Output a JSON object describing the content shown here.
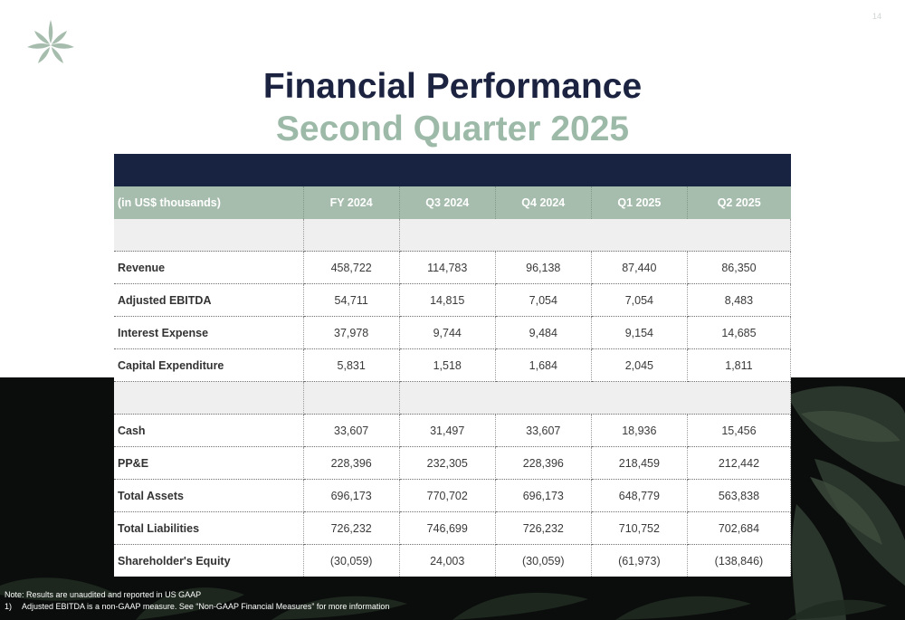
{
  "page_number": "14",
  "title": "Financial Performance",
  "subtitle": "Second Quarter 2025",
  "colors": {
    "navy": "#182241",
    "sage": "#a6bdad",
    "subtitle_green": "#9dbaa9"
  },
  "logo_icon": "leaf-star-logo-icon",
  "table": {
    "headers": [
      "(in US$ thousands)",
      "FY 2024",
      "Q3 2024",
      "Q4 2024",
      "Q1 2025",
      "Q2 2025"
    ],
    "group1": [
      {
        "label": "Revenue",
        "values": [
          "458,722",
          "114,783",
          "96,138",
          "87,440",
          "86,350"
        ]
      },
      {
        "label": "Adjusted EBITDA",
        "values": [
          "54,711",
          "14,815",
          "7,054",
          "7,054",
          "8,483"
        ]
      },
      {
        "label": "Interest Expense",
        "values": [
          "37,978",
          "9,744",
          "9,484",
          "9,154",
          "14,685"
        ]
      },
      {
        "label": "Capital Expenditure",
        "values": [
          "5,831",
          "1,518",
          "1,684",
          "2,045",
          "1,811"
        ]
      }
    ],
    "group2": [
      {
        "label": "Cash",
        "values": [
          "33,607",
          "31,497",
          "33,607",
          "18,936",
          "15,456"
        ]
      },
      {
        "label": "PP&E",
        "values": [
          "228,396",
          "232,305",
          "228,396",
          "218,459",
          "212,442"
        ]
      },
      {
        "label": "Total Assets",
        "values": [
          "696,173",
          "770,702",
          "696,173",
          "648,779",
          "563,838"
        ]
      },
      {
        "label": "Total Liabilities",
        "values": [
          "726,232",
          "746,699",
          "726,232",
          "710,752",
          "702,684"
        ]
      },
      {
        "label": "Shareholder's Equity",
        "values": [
          "(30,059)",
          "24,003",
          "(30,059)",
          "(61,973)",
          "(138,846)"
        ]
      }
    ]
  },
  "notes": {
    "line1": "Note: Results are unaudited and reported in US GAAP",
    "footnote_number": "1)",
    "footnote_text": "Adjusted EBITDA is a non-GAAP measure. See “Non-GAAP Financial Measures” for more information"
  }
}
